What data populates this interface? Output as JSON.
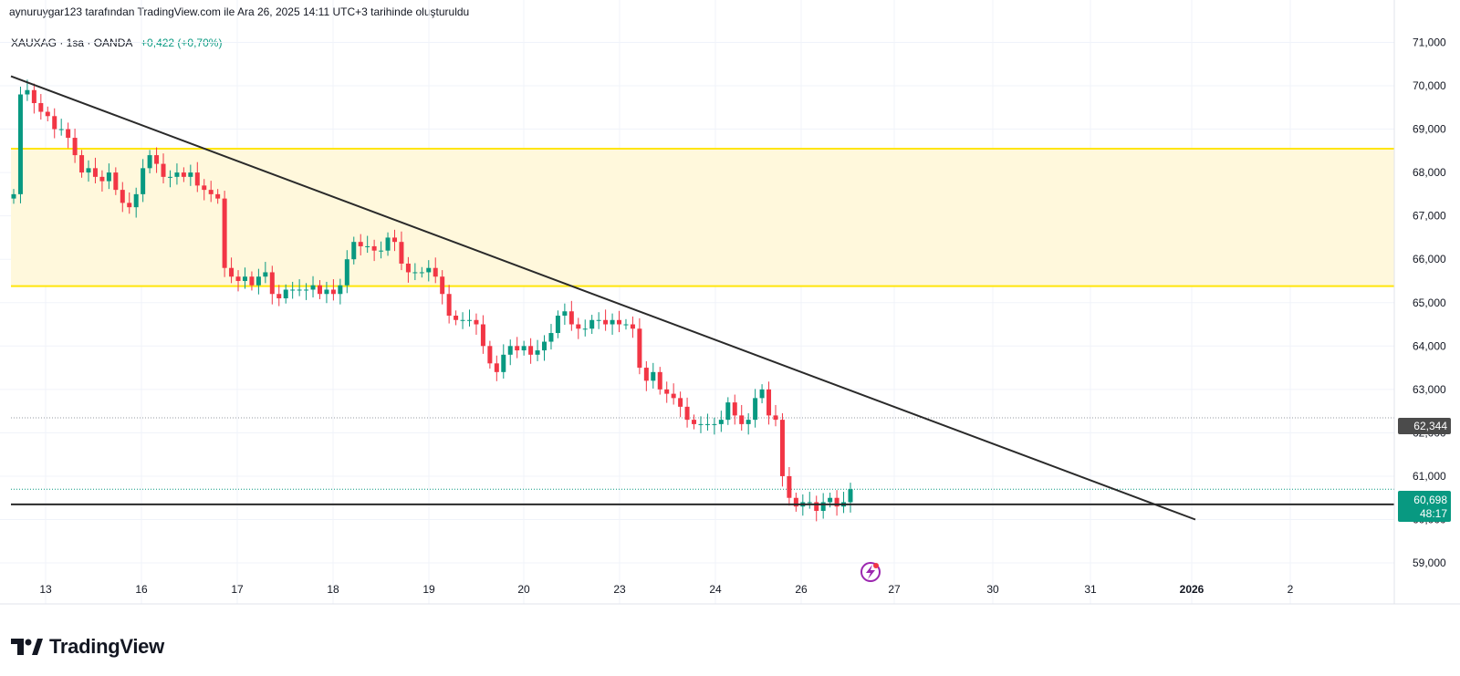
{
  "header": {
    "caption": "aynuruygar123 tarafından TradingView.com ile Ara 26, 2025 14:11 UTC+3 tarihinde oluşturuldu"
  },
  "legend": {
    "symbol": "XAUXAG · 1sa · OANDA",
    "change": "+0,422 (+0,70%)"
  },
  "brand": {
    "name": "TradingView",
    "logo_icon": "tradingview-logo-icon"
  },
  "colors": {
    "up": "#089981",
    "down": "#f23645",
    "zone_fill": "#fff8dc",
    "zone_line": "#ffe50a",
    "trendline": "#2a2a2a",
    "last_price_bg": "#089981",
    "marker_bg": "#4b4b4b",
    "event_icon": "#9c27b0"
  },
  "price_scale": {
    "ticks": [
      "59,000",
      "60,000",
      "61,000",
      "62,000",
      "63,000",
      "64,000",
      "65,000",
      "66,000",
      "67,000",
      "68,000",
      "69,000",
      "70,000",
      "71,000"
    ],
    "marker_value": "62,344",
    "last_price": "60,698",
    "countdown": "48:17"
  },
  "chart_data": {
    "type": "candlestick",
    "interval": "1h",
    "x_ticks": [
      "13",
      "16",
      "17",
      "18",
      "19",
      "20",
      "23",
      "24",
      "26",
      "27",
      "30",
      "31",
      "2026",
      "2"
    ],
    "y_range": [
      58.8,
      71.3
    ],
    "horizontal_lines": [
      {
        "name": "zone-top",
        "value": 68.55
      },
      {
        "name": "zone-bottom",
        "value": 65.38
      },
      {
        "name": "support",
        "value": 60.35
      },
      {
        "name": "marker",
        "value": 62.344
      }
    ],
    "trendline_values": {
      "start": 70.22,
      "end": 60.0
    },
    "close_series": [
      67.5,
      69.8,
      69.9,
      69.6,
      69.4,
      69.3,
      69.0,
      69.0,
      68.8,
      68.4,
      68.0,
      68.1,
      67.9,
      67.8,
      68.0,
      67.6,
      67.3,
      67.2,
      67.5,
      68.1,
      68.4,
      68.2,
      67.9,
      67.9,
      68.0,
      67.9,
      68.0,
      67.7,
      67.6,
      67.5,
      67.4,
      65.8,
      65.6,
      65.5,
      65.6,
      65.4,
      65.6,
      65.7,
      65.2,
      65.1,
      65.3,
      65.3,
      65.3,
      65.3,
      65.4,
      65.2,
      65.3,
      65.2,
      65.4,
      66.0,
      66.4,
      66.3,
      66.3,
      66.2,
      66.2,
      66.5,
      66.4,
      65.9,
      65.7,
      65.7,
      65.7,
      65.8,
      65.6,
      65.2,
      64.7,
      64.6,
      64.6,
      64.6,
      64.5,
      64.0,
      63.6,
      63.4,
      63.8,
      64.0,
      63.9,
      64.0,
      63.8,
      63.9,
      64.1,
      64.3,
      64.7,
      64.8,
      64.5,
      64.4,
      64.4,
      64.6,
      64.6,
      64.5,
      64.6,
      64.5,
      64.5,
      64.4,
      63.5,
      63.2,
      63.4,
      63.0,
      62.9,
      62.8,
      62.6,
      62.3,
      62.2,
      62.2,
      62.2,
      62.2,
      62.3,
      62.7,
      62.4,
      62.2,
      62.3,
      62.8,
      63.0,
      62.4,
      62.3,
      61.0,
      60.5,
      60.3,
      60.4,
      60.4,
      60.2,
      60.4,
      60.5,
      60.3,
      60.4,
      60.7
    ]
  }
}
